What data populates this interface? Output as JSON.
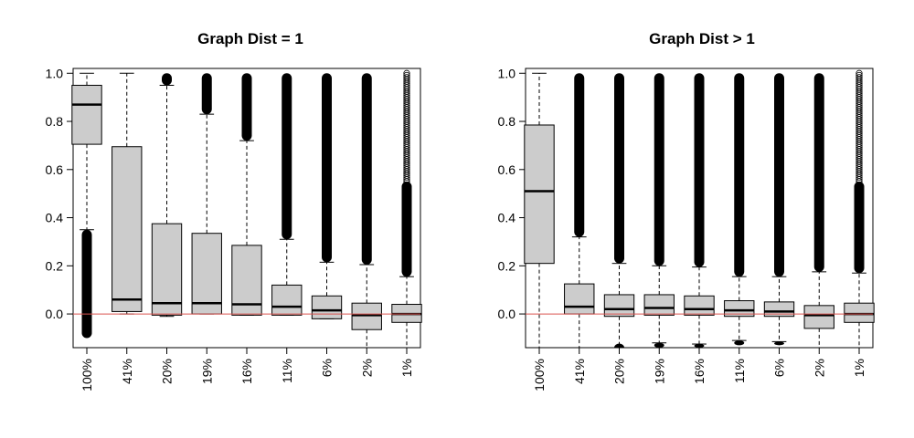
{
  "chart_data": [
    {
      "type": "box",
      "title": "Graph Dist = 1",
      "xlabel": "",
      "ylabel": "",
      "ylim": [
        -0.14,
        1.02
      ],
      "yticks": [
        0.0,
        0.2,
        0.4,
        0.6,
        0.8,
        1.0
      ],
      "reference_line": {
        "y": 0.0,
        "color": "#d9534f"
      },
      "box_fill": "#cccccc",
      "categories": [
        "100%",
        "41%",
        "20%",
        "19%",
        "16%",
        "11%",
        "6%",
        "2%",
        "1%"
      ],
      "boxes": [
        {
          "whisker_low": 0.35,
          "q1": 0.705,
          "median": 0.87,
          "q3": 0.95,
          "whisker_high": 1.0,
          "outliers": [
            {
              "from": -0.1,
              "to": 0.35,
              "style": "dense"
            }
          ]
        },
        {
          "whisker_low": 0.0,
          "q1": 0.01,
          "median": 0.06,
          "q3": 0.695,
          "whisker_high": 1.0,
          "outliers": []
        },
        {
          "whisker_low": -0.01,
          "q1": -0.005,
          "median": 0.045,
          "q3": 0.375,
          "whisker_high": 0.95,
          "outliers": [
            {
              "from": 0.95,
              "to": 1.0,
              "style": "dense"
            }
          ]
        },
        {
          "whisker_low": 0.0,
          "q1": 0.0,
          "median": 0.045,
          "q3": 0.335,
          "whisker_high": 0.83,
          "outliers": [
            {
              "from": 0.83,
              "to": 1.0,
              "style": "dense"
            }
          ]
        },
        {
          "whisker_low": -0.005,
          "q1": -0.005,
          "median": 0.04,
          "q3": 0.285,
          "whisker_high": 0.72,
          "outliers": [
            {
              "from": 0.72,
              "to": 1.0,
              "style": "dense"
            }
          ]
        },
        {
          "whisker_low": -0.005,
          "q1": -0.005,
          "median": 0.03,
          "q3": 0.12,
          "whisker_high": 0.31,
          "outliers": [
            {
              "from": 0.31,
              "to": 1.0,
              "style": "dense"
            }
          ]
        },
        {
          "whisker_low": -0.02,
          "q1": -0.02,
          "median": 0.015,
          "q3": 0.075,
          "whisker_high": 0.215,
          "outliers": [
            {
              "from": 0.215,
              "to": 1.0,
              "style": "dense"
            }
          ]
        },
        {
          "whisker_low": -0.14,
          "q1": -0.065,
          "median": -0.005,
          "q3": 0.045,
          "whisker_high": 0.205,
          "outliers": [
            {
              "from": 0.205,
              "to": 1.0,
              "style": "dense"
            }
          ]
        },
        {
          "whisker_low": -0.14,
          "q1": -0.035,
          "median": 0.0,
          "q3": 0.04,
          "whisker_high": 0.155,
          "outliers": [
            {
              "from": 0.155,
              "to": 0.55,
              "style": "dense"
            },
            {
              "from": 0.55,
              "to": 1.0,
              "style": "sparse"
            }
          ]
        }
      ]
    },
    {
      "type": "box",
      "title": "Graph Dist > 1",
      "xlabel": "",
      "ylabel": "",
      "ylim": [
        -0.14,
        1.02
      ],
      "yticks": [
        0.0,
        0.2,
        0.4,
        0.6,
        0.8,
        1.0
      ],
      "reference_line": {
        "y": 0.0,
        "color": "#d9534f"
      },
      "box_fill": "#cccccc",
      "categories": [
        "100%",
        "41%",
        "20%",
        "19%",
        "16%",
        "11%",
        "6%",
        "2%",
        "1%"
      ],
      "boxes": [
        {
          "whisker_low": -0.14,
          "q1": 0.21,
          "median": 0.51,
          "q3": 0.785,
          "whisker_high": 1.0,
          "outliers": []
        },
        {
          "whisker_low": -0.14,
          "q1": 0.0,
          "median": 0.03,
          "q3": 0.125,
          "whisker_high": 0.32,
          "outliers": [
            {
              "from": 0.32,
              "to": 1.0,
              "style": "dense"
            }
          ]
        },
        {
          "whisker_low": -0.14,
          "q1": -0.01,
          "median": 0.02,
          "q3": 0.08,
          "whisker_high": 0.21,
          "outliers": [
            {
              "from": 0.21,
              "to": 1.0,
              "style": "dense"
            },
            {
              "from": -0.14,
              "to": -0.14,
              "style": "dense"
            }
          ]
        },
        {
          "whisker_low": -0.12,
          "q1": -0.005,
          "median": 0.025,
          "q3": 0.08,
          "whisker_high": 0.2,
          "outliers": [
            {
              "from": 0.2,
              "to": 1.0,
              "style": "dense"
            },
            {
              "from": -0.14,
              "to": -0.12,
              "style": "dense"
            }
          ]
        },
        {
          "whisker_low": -0.125,
          "q1": -0.005,
          "median": 0.02,
          "q3": 0.075,
          "whisker_high": 0.195,
          "outliers": [
            {
              "from": 0.195,
              "to": 1.0,
              "style": "dense"
            },
            {
              "from": -0.14,
              "to": -0.125,
              "style": "dense"
            }
          ]
        },
        {
          "whisker_low": -0.11,
          "q1": -0.01,
          "median": 0.015,
          "q3": 0.055,
          "whisker_high": 0.155,
          "outliers": [
            {
              "from": 0.155,
              "to": 1.0,
              "style": "dense"
            },
            {
              "from": -0.13,
              "to": -0.11,
              "style": "dense"
            }
          ]
        },
        {
          "whisker_low": -0.115,
          "q1": -0.01,
          "median": 0.01,
          "q3": 0.05,
          "whisker_high": 0.155,
          "outliers": [
            {
              "from": 0.155,
              "to": 1.0,
              "style": "dense"
            },
            {
              "from": -0.13,
              "to": -0.115,
              "style": "dense"
            }
          ]
        },
        {
          "whisker_low": -0.14,
          "q1": -0.06,
          "median": -0.005,
          "q3": 0.035,
          "whisker_high": 0.175,
          "outliers": [
            {
              "from": 0.175,
              "to": 1.0,
              "style": "dense"
            }
          ]
        },
        {
          "whisker_low": -0.14,
          "q1": -0.035,
          "median": 0.0,
          "q3": 0.045,
          "whisker_high": 0.17,
          "outliers": [
            {
              "from": 0.17,
              "to": 0.55,
              "style": "dense"
            },
            {
              "from": 0.55,
              "to": 1.0,
              "style": "sparse"
            }
          ]
        }
      ]
    }
  ]
}
